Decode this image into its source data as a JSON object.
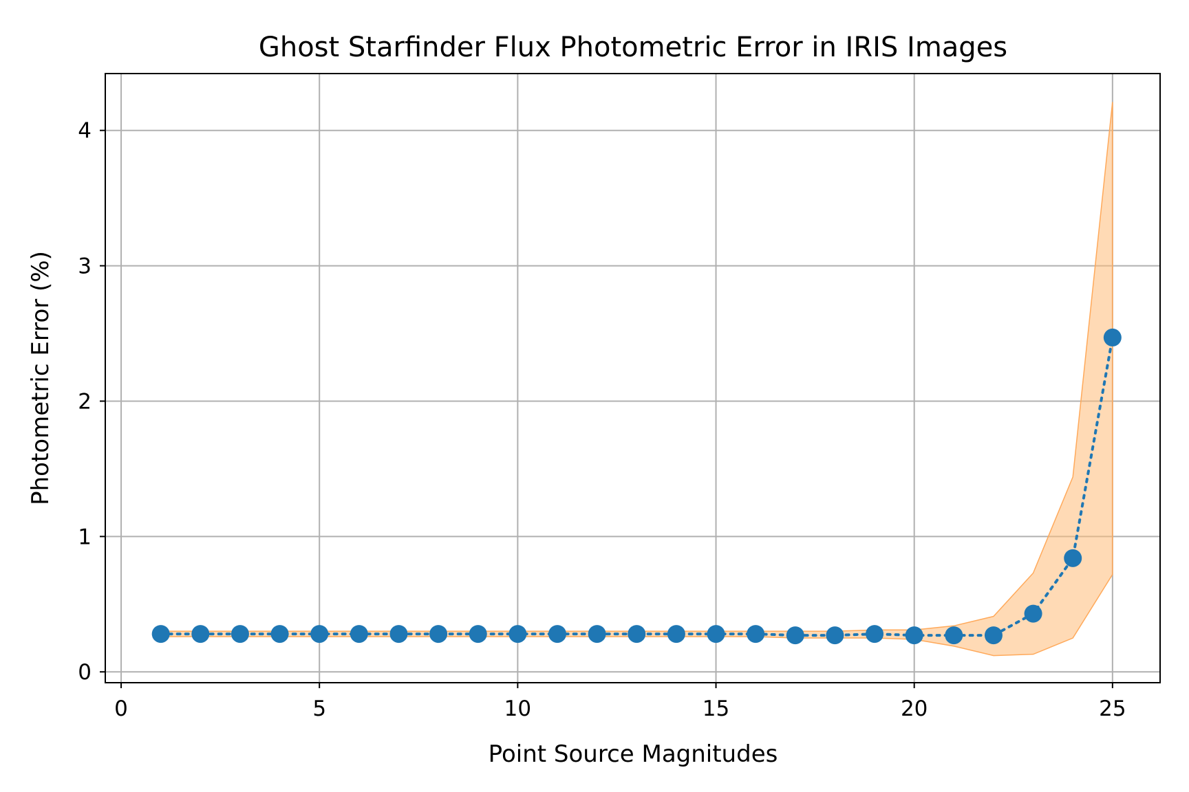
{
  "chart_data": {
    "type": "line",
    "title": "Ghost Starfinder Flux Photometric Error in IRIS Images",
    "xlabel": "Point Source Magnitudes",
    "ylabel": "Photometric Error (%)",
    "xlim": [
      -0.4,
      26.2
    ],
    "ylim": [
      -0.08,
      4.42
    ],
    "xticks": [
      0,
      5,
      10,
      15,
      20,
      25
    ],
    "yticks": [
      0,
      1,
      2,
      3,
      4
    ],
    "grid": true,
    "colors": {
      "line": "#1f77b4",
      "band": "#ffbb78",
      "band_edge": "#ffa95a"
    },
    "series": [
      {
        "x": [
          1,
          2,
          3,
          4,
          5,
          6,
          7,
          8,
          9,
          10,
          11,
          12,
          13,
          14,
          15,
          16,
          17,
          18,
          19,
          20,
          21,
          22,
          23,
          24,
          25
        ],
        "y": [
          0.28,
          0.28,
          0.28,
          0.28,
          0.28,
          0.28,
          0.28,
          0.28,
          0.28,
          0.28,
          0.28,
          0.28,
          0.28,
          0.28,
          0.28,
          0.28,
          0.27,
          0.27,
          0.28,
          0.27,
          0.27,
          0.27,
          0.43,
          0.84,
          2.47
        ],
        "band_lower": [
          0.26,
          0.26,
          0.26,
          0.26,
          0.26,
          0.26,
          0.26,
          0.26,
          0.26,
          0.26,
          0.26,
          0.26,
          0.26,
          0.26,
          0.26,
          0.26,
          0.25,
          0.25,
          0.25,
          0.24,
          0.19,
          0.12,
          0.13,
          0.25,
          0.72
        ],
        "band_upper": [
          0.3,
          0.3,
          0.3,
          0.3,
          0.3,
          0.3,
          0.3,
          0.3,
          0.3,
          0.3,
          0.3,
          0.3,
          0.3,
          0.3,
          0.3,
          0.3,
          0.3,
          0.3,
          0.31,
          0.31,
          0.34,
          0.41,
          0.73,
          1.44,
          4.21
        ]
      }
    ]
  }
}
